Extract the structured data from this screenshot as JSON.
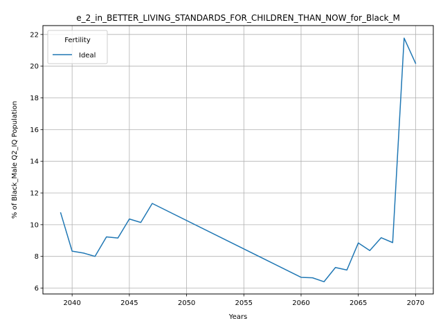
{
  "chart_data": {
    "type": "line",
    "title": "e_2_in_BETTER_LIVING_STANDARDS_FOR_CHILDREN_THAN_NOW_for_Black_M",
    "xlabel": "Years",
    "ylabel": "% of Black_Male Q2_IQ Population",
    "xlim": [
      2037.45,
      2071.55
    ],
    "ylim": [
      5.63,
      22.56
    ],
    "xticks": [
      2040,
      2045,
      2050,
      2055,
      2060,
      2065,
      2070
    ],
    "yticks": [
      6,
      8,
      10,
      12,
      14,
      16,
      18,
      20,
      22
    ],
    "grid": true,
    "legend": {
      "title": "Fertility",
      "placement": "top-left"
    },
    "series": [
      {
        "name": "Ideal",
        "color": "#1f77b4",
        "x": [
          2039,
          2040,
          2041,
          2042,
          2043,
          2044,
          2045,
          2046,
          2047,
          2060,
          2061,
          2062,
          2063,
          2064,
          2065,
          2066,
          2067,
          2068,
          2069,
          2070
        ],
        "y": [
          10.75,
          8.33,
          8.21,
          8.0,
          9.23,
          9.16,
          10.36,
          10.14,
          11.34,
          6.68,
          6.65,
          6.4,
          7.3,
          7.14,
          8.85,
          8.37,
          9.18,
          8.87,
          21.77,
          20.18
        ]
      }
    ]
  }
}
